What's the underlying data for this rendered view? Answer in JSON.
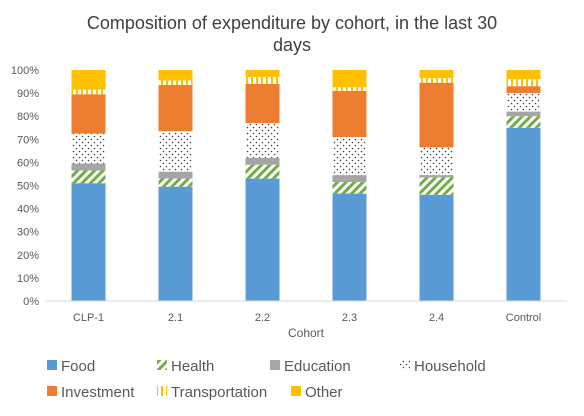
{
  "chart_data": {
    "type": "bar",
    "stacked": true,
    "percent": true,
    "title_lines": [
      "Composition of expenditure by cohort, in the last 30",
      "days"
    ],
    "xlabel": "Cohort",
    "ylabel": "",
    "ylim": [
      0,
      100
    ],
    "y_ticks": [
      "0%",
      "10%",
      "20%",
      "30%",
      "40%",
      "50%",
      "60%",
      "70%",
      "80%",
      "90%",
      "100%"
    ],
    "grid": false,
    "legend_position": "bottom",
    "categories": [
      "CLP-1",
      "2.1",
      "2.2",
      "2.3",
      "2.4",
      "Control"
    ],
    "series": [
      {
        "name": "Food",
        "color": "#5B9BD5",
        "pattern": "solid",
        "values": [
          51,
          49.5,
          53,
          46.5,
          46,
          75
        ]
      },
      {
        "name": "Health",
        "color": "#70AD47",
        "pattern": "diagonal",
        "values": [
          5.5,
          3.5,
          6,
          5,
          7.5,
          5
        ]
      },
      {
        "name": "Education",
        "color": "#A5A5A5",
        "pattern": "solid",
        "values": [
          3,
          3,
          3,
          3,
          1,
          2
        ]
      },
      {
        "name": "Household",
        "color": "#404040",
        "pattern": "dots",
        "values": [
          13,
          17.5,
          15,
          16.5,
          12,
          8
        ]
      },
      {
        "name": "Investment",
        "color": "#ED7D31",
        "pattern": "solid",
        "values": [
          17,
          20,
          17,
          20,
          28,
          3
        ]
      },
      {
        "name": "Transportation",
        "color": "#FFC000",
        "pattern": "vertical",
        "values": [
          2,
          2,
          3,
          1.5,
          2,
          3
        ]
      },
      {
        "name": "Other",
        "color": "#FFC000",
        "pattern": "solid",
        "values": [
          8.5,
          4.5,
          3,
          7.5,
          3.5,
          4
        ]
      }
    ]
  }
}
